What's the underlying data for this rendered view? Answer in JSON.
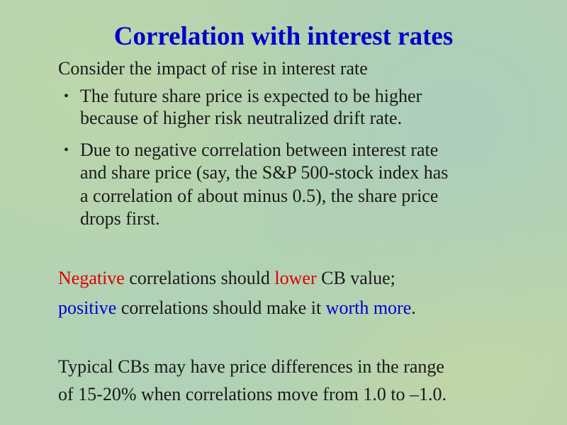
{
  "title": "Correlation with interest rates",
  "intro": "Consider the impact of rise in interest rate",
  "bullets": [
    {
      "lines": [
        "The future share price is expected to be higher",
        "because of higher risk neutralized drift rate."
      ]
    },
    {
      "lines": [
        "Due to negative correlation between interest rate",
        "and share price (say, the S&P 500-stock index has",
        "a correlation of about minus 0.5), the share price",
        "drops first."
      ]
    }
  ],
  "colored_lines": [
    [
      {
        "text": "Negative",
        "color": "#dd0000"
      },
      {
        "text": " correlations should ",
        "color": "#1a1a1a"
      },
      {
        "text": "lower",
        "color": "#dd0000"
      },
      {
        "text": " CB value;",
        "color": "#1a1a1a"
      }
    ],
    [
      {
        "text": "positive",
        "color": "#0000cc"
      },
      {
        "text": " correlations should make it ",
        "color": "#1a1a1a"
      },
      {
        "text": "worth more",
        "color": "#0000cc"
      },
      {
        "text": ".",
        "color": "#1a1a1a"
      }
    ]
  ],
  "closing": [
    "Typical CBs may have price differences in the range",
    "of 15-20% when correlations move from 1.0 to –1.0."
  ]
}
